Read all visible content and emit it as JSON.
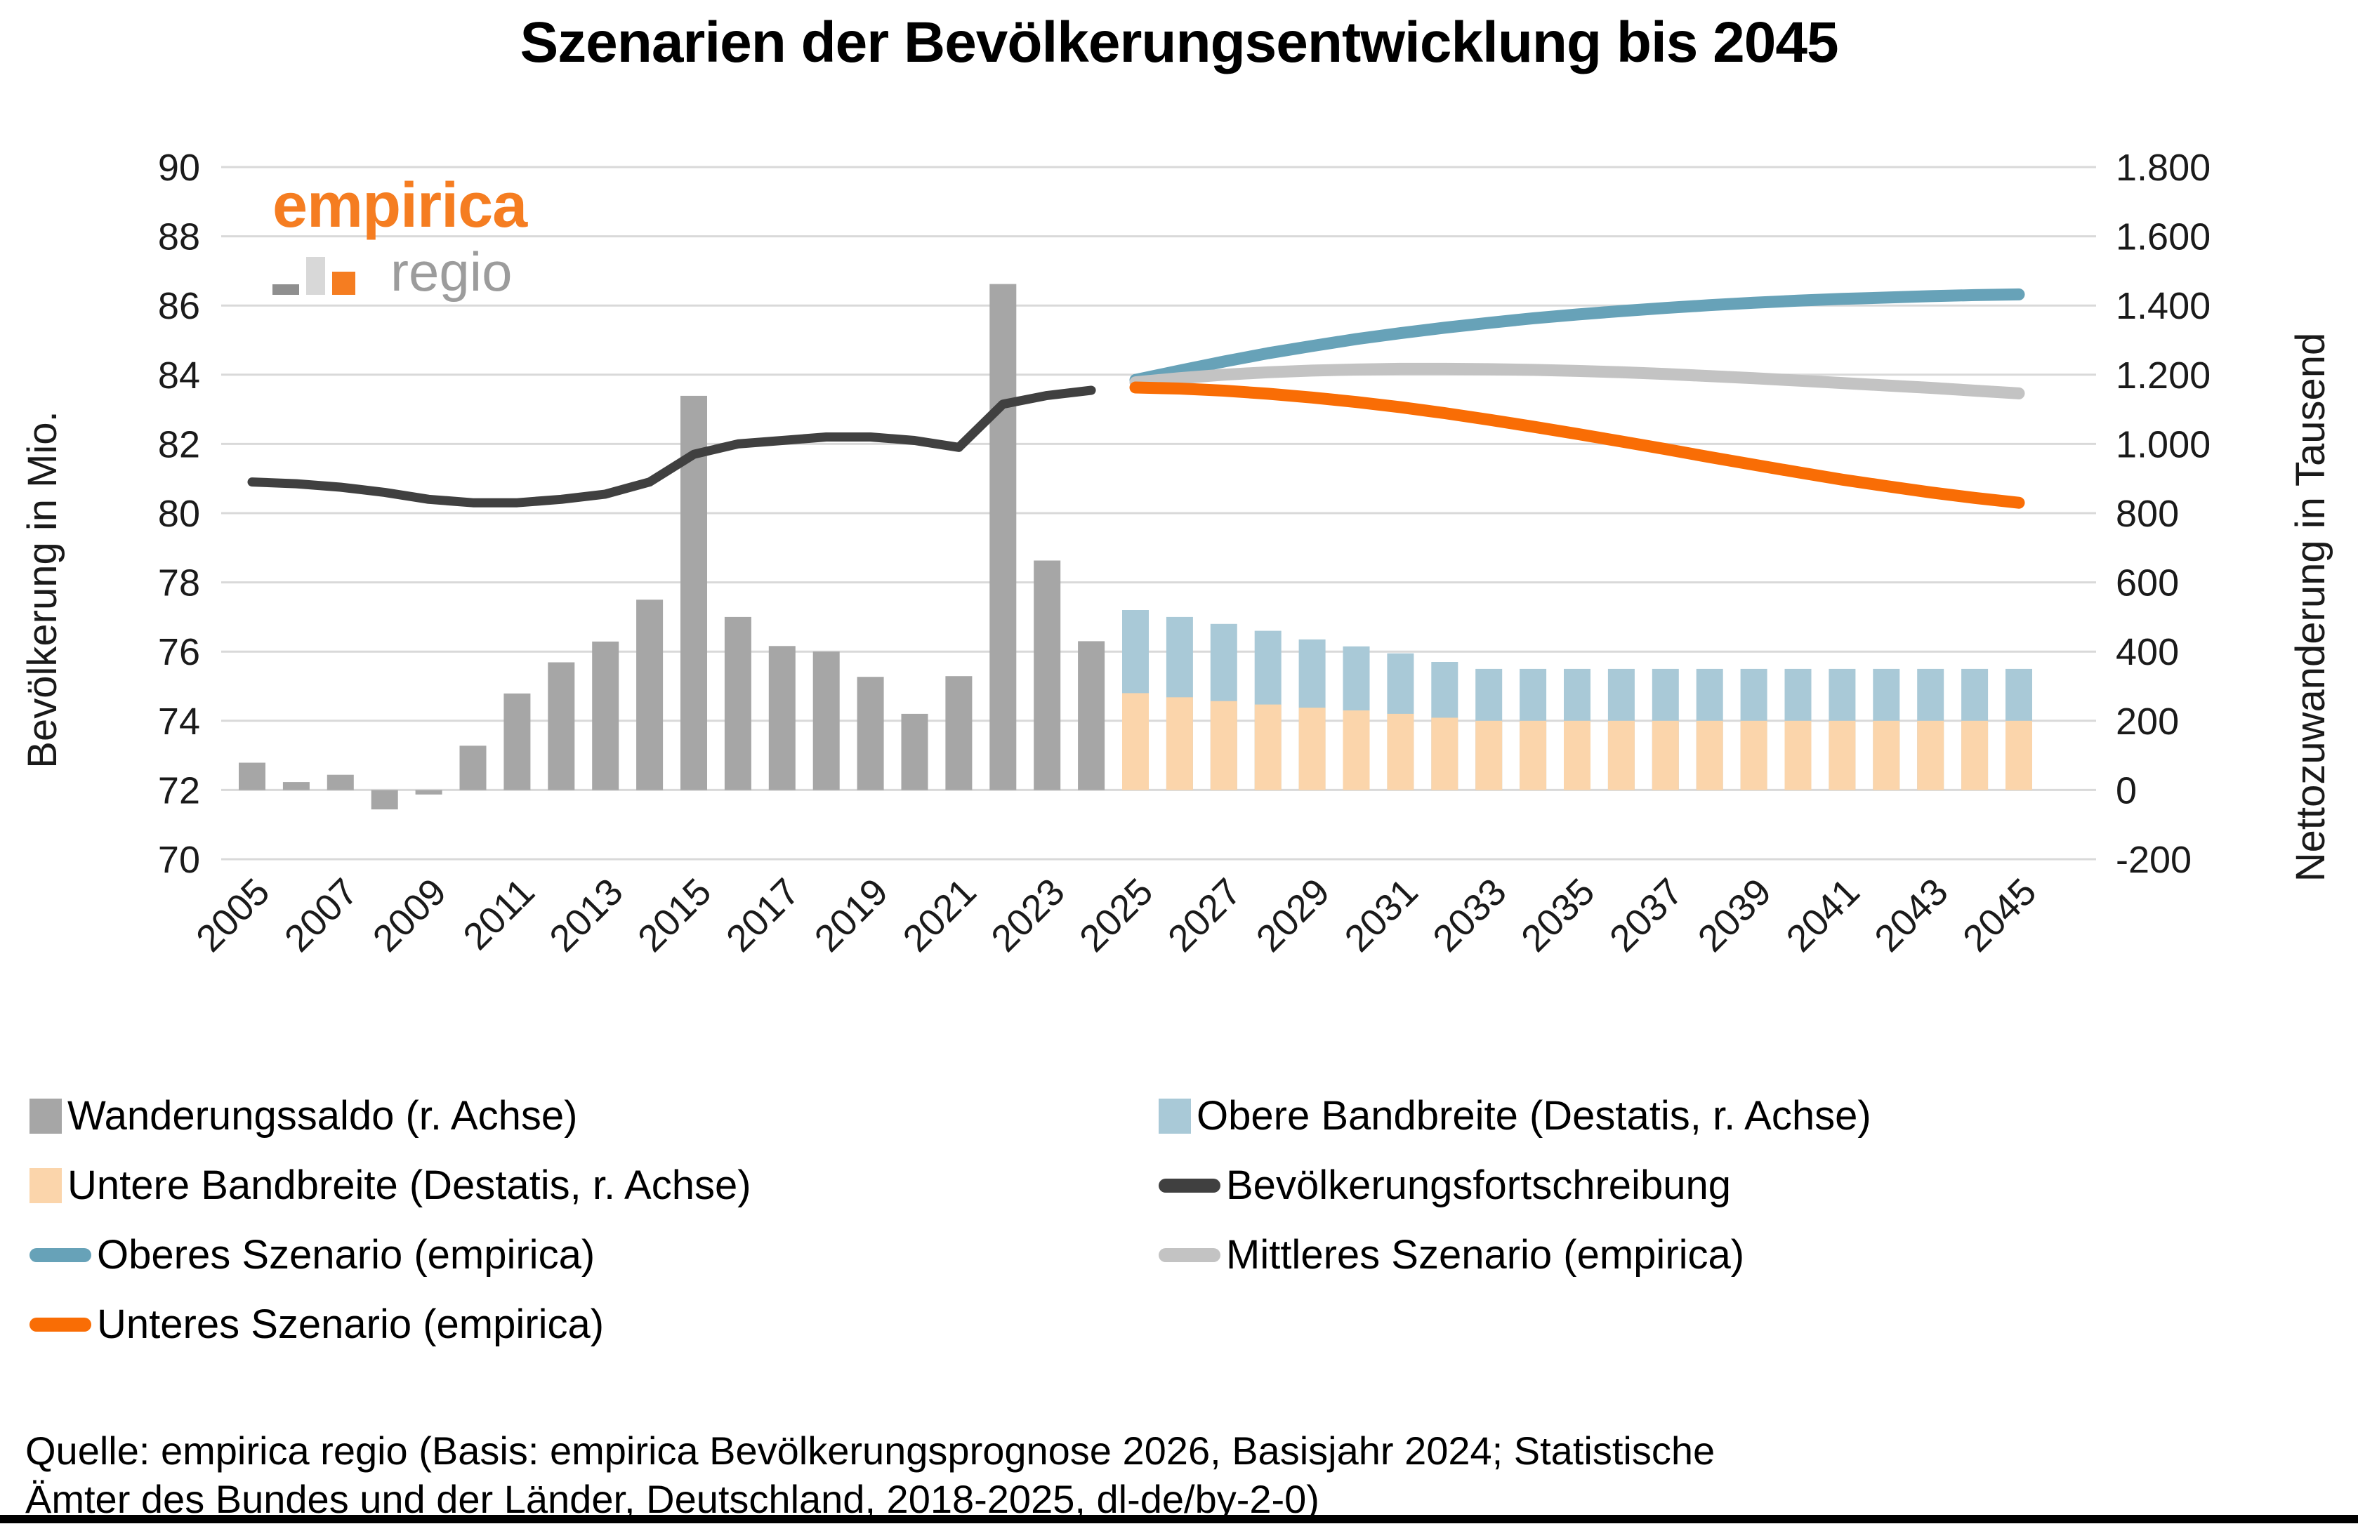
{
  "title": "Szenarien der Bevölkerungsentwicklung bis 2045",
  "logo": {
    "primary": "empirica",
    "secondary": "regio"
  },
  "axes": {
    "left_ticks": [
      "90",
      "88",
      "86",
      "84",
      "82",
      "80",
      "78",
      "76",
      "74",
      "72",
      "70"
    ],
    "right_ticks": [
      "1.800",
      "1.600",
      "1.400",
      "1.200",
      "1.000",
      "800",
      "600",
      "400",
      "200",
      "0",
      "-200"
    ],
    "x_ticks": [
      "2005",
      "2007",
      "2009",
      "2011",
      "2013",
      "2015",
      "2017",
      "2019",
      "2021",
      "2023",
      "2025",
      "2027",
      "2029",
      "2031",
      "2033",
      "2035",
      "2037",
      "2039",
      "2041",
      "2043",
      "2045"
    ]
  },
  "chart_data": {
    "type": "combo",
    "title": "Szenarien der Bevölkerungsentwicklung bis 2045",
    "grid": true,
    "legend_position": "bottom",
    "x": [
      2005,
      2006,
      2007,
      2008,
      2009,
      2010,
      2011,
      2012,
      2013,
      2014,
      2015,
      2016,
      2017,
      2018,
      2019,
      2020,
      2021,
      2022,
      2023,
      2024,
      2025,
      2026,
      2027,
      2028,
      2029,
      2030,
      2031,
      2032,
      2033,
      2034,
      2035,
      2036,
      2037,
      2038,
      2039,
      2040,
      2041,
      2042,
      2043,
      2044,
      2045
    ],
    "left_axis": {
      "label": "Bevölkerung in Mio.",
      "range": [
        70,
        90
      ]
    },
    "right_axis": {
      "label": "Nettozuwanderung in Tausend",
      "range": [
        -200,
        1800
      ]
    },
    "series": [
      {
        "name": "Wanderungssaldo (r. Achse)",
        "type": "bar",
        "axis": "right",
        "color": "#a6a6a6",
        "values": [
          79,
          23,
          44,
          -56,
          -13,
          128,
          279,
          369,
          429,
          550,
          1139,
          500,
          416,
          400,
          327,
          220,
          329,
          1462,
          663,
          430,
          null,
          null,
          null,
          null,
          null,
          null,
          null,
          null,
          null,
          null,
          null,
          null,
          null,
          null,
          null,
          null,
          null,
          null,
          null,
          null,
          null
        ]
      },
      {
        "name": "Obere Bandbreite (Destatis, r. Achse)",
        "type": "bar",
        "axis": "right",
        "color": "#a9c9d7",
        "values": [
          null,
          null,
          null,
          null,
          null,
          null,
          null,
          null,
          null,
          null,
          null,
          null,
          null,
          null,
          null,
          null,
          null,
          null,
          null,
          null,
          520,
          500,
          480,
          460,
          435,
          415,
          395,
          370,
          350,
          350,
          350,
          350,
          350,
          350,
          350,
          350,
          350,
          350,
          350,
          350,
          350
        ]
      },
      {
        "name": "Untere Bandbreite (Destatis, r. Achse)",
        "type": "bar",
        "axis": "right",
        "color": "#fbd5ab",
        "values": [
          null,
          null,
          null,
          null,
          null,
          null,
          null,
          null,
          null,
          null,
          null,
          null,
          null,
          null,
          null,
          null,
          null,
          null,
          null,
          null,
          280,
          268,
          257,
          247,
          238,
          230,
          220,
          209,
          200,
          200,
          200,
          200,
          200,
          200,
          200,
          200,
          200,
          200,
          200,
          200,
          200
        ]
      },
      {
        "name": "Bevölkerungsfortschreibung",
        "type": "line",
        "axis": "left",
        "color": "#404040",
        "values": [
          80.9,
          80.85,
          80.75,
          80.6,
          80.4,
          80.3,
          80.3,
          80.4,
          80.55,
          80.9,
          81.7,
          82.0,
          82.1,
          82.2,
          82.2,
          82.1,
          81.9,
          83.15,
          83.4,
          83.55,
          null,
          null,
          null,
          null,
          null,
          null,
          null,
          null,
          null,
          null,
          null,
          null,
          null,
          null,
          null,
          null,
          null,
          null,
          null,
          null,
          null
        ]
      },
      {
        "name": "Oberes Szenario (empirica)",
        "type": "line",
        "axis": "left",
        "color": "#67a2b8",
        "values": [
          null,
          null,
          null,
          null,
          null,
          null,
          null,
          null,
          null,
          null,
          null,
          null,
          null,
          null,
          null,
          null,
          null,
          null,
          null,
          null,
          83.85,
          84.12,
          84.38,
          84.62,
          84.83,
          85.03,
          85.2,
          85.36,
          85.5,
          85.63,
          85.74,
          85.84,
          85.93,
          86.01,
          86.08,
          86.14,
          86.19,
          86.23,
          86.27,
          86.3,
          86.32
        ]
      },
      {
        "name": "Mittleres Szenario (empirica)",
        "type": "line",
        "axis": "left",
        "color": "#c3c3c3",
        "values": [
          null,
          null,
          null,
          null,
          null,
          null,
          null,
          null,
          null,
          null,
          null,
          null,
          null,
          null,
          null,
          null,
          null,
          null,
          null,
          null,
          83.78,
          83.9,
          84.0,
          84.07,
          84.12,
          84.15,
          84.17,
          84.17,
          84.16,
          84.14,
          84.11,
          84.07,
          84.02,
          83.96,
          83.9,
          83.83,
          83.76,
          83.69,
          83.62,
          83.54,
          83.46
        ]
      },
      {
        "name": "Unteres Szenario (empirica)",
        "type": "line",
        "axis": "left",
        "color": "#f96d05",
        "values": [
          null,
          null,
          null,
          null,
          null,
          null,
          null,
          null,
          null,
          null,
          null,
          null,
          null,
          null,
          null,
          null,
          null,
          null,
          null,
          null,
          83.63,
          83.6,
          83.54,
          83.45,
          83.34,
          83.21,
          83.06,
          82.89,
          82.7,
          82.5,
          82.29,
          82.07,
          81.85,
          81.62,
          81.4,
          81.18,
          80.97,
          80.78,
          80.6,
          80.44,
          80.3
        ]
      }
    ]
  },
  "legend": [
    {
      "label": "Wanderungssaldo (r. Achse)",
      "marker": "square",
      "color": "#a6a6a6"
    },
    {
      "label": "Obere Bandbreite (Destatis, r. Achse)",
      "marker": "square",
      "color": "#a9c9d7"
    },
    {
      "label": "Untere Bandbreite (Destatis, r. Achse)",
      "marker": "square",
      "color": "#fbd5ab"
    },
    {
      "label": "Bevölkerungsfortschreibung",
      "marker": "line",
      "color": "#404040"
    },
    {
      "label": "Oberes Szenario (empirica)",
      "marker": "line",
      "color": "#67a2b8"
    },
    {
      "label": "Mittleres Szenario (empirica)",
      "marker": "line",
      "color": "#c3c3c3"
    },
    {
      "label": "Unteres Szenario (empirica)",
      "marker": "line",
      "color": "#f96d05"
    }
  ],
  "source_lines": [
    "Quelle: empirica regio (Basis: empirica Bevölkerungsprognose 2026, Basisjahr 2024; Statistische",
    "Ämter des Bundes und der Länder, Deutschland, 2018-2025, dl-de/by-2-0)"
  ],
  "colors": {
    "accent_orange": "#f96d05",
    "logo_orange": "#f57d21",
    "gridline": "#d9d9d9",
    "history_bar": "#a6a6a6",
    "upper_band_bar": "#a9c9d7",
    "lower_band_bar": "#fbd5ab",
    "population_line": "#404040",
    "upper_scenario_line": "#67a2b8",
    "middle_scenario_line": "#c3c3c3"
  }
}
